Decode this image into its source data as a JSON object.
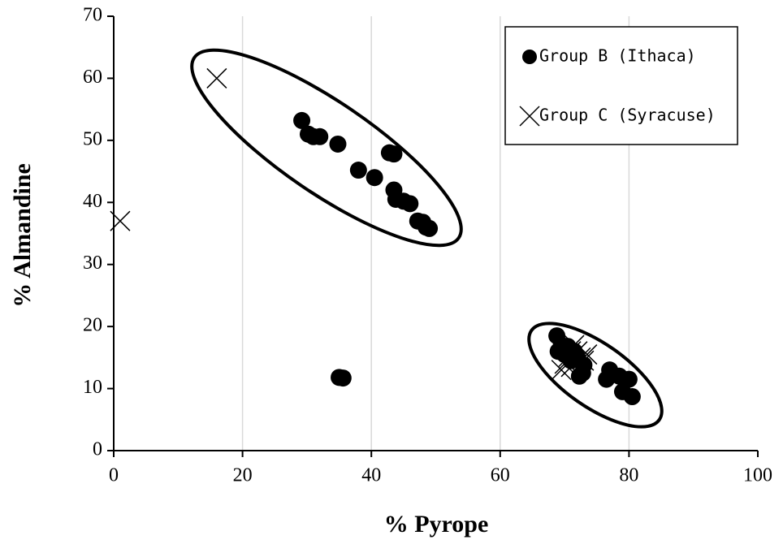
{
  "chart_data": {
    "type": "scatter",
    "x_label": "% Pyrope",
    "y_label": "% Almandine",
    "xlim": [
      0,
      100
    ],
    "xticks": [
      0,
      20,
      40,
      60,
      80,
      100
    ],
    "ylim": [
      0,
      70
    ],
    "yticks": [
      0,
      10,
      20,
      30,
      40,
      50,
      60,
      70
    ],
    "grid": "x",
    "legend": "upper right",
    "series": [
      {
        "name": "Group B (Ithaca)",
        "color": "#000000",
        "marker": "circle",
        "x": [
          29.2,
          30.2,
          31,
          32,
          34.8,
          38,
          40.5,
          42.8,
          43.5,
          43.5,
          43.8,
          45,
          46,
          47.2,
          48,
          48.5,
          49,
          35,
          35.6,
          68.8,
          69,
          69.5,
          70,
          70.5,
          71,
          71.5,
          72,
          72.3,
          72.8,
          73,
          76.5,
          77,
          78.5,
          79,
          80,
          80.5
        ],
        "values": [
          53.2,
          51,
          50.6,
          50.6,
          49.4,
          45.2,
          44,
          48,
          47.8,
          42,
          40.5,
          40.2,
          39.8,
          37,
          36.8,
          36,
          35.8,
          11.8,
          11.7,
          18.5,
          16,
          17,
          15.5,
          16.8,
          14.5,
          16,
          15,
          12,
          12.5,
          13.8,
          11.5,
          13,
          12,
          9.5,
          11.5,
          8.7
        ]
      },
      {
        "name": "Group C (Syracuse)",
        "color": "#000000",
        "marker": "x",
        "x": [
          16,
          1,
          69.5,
          70,
          70.5,
          71,
          71.5,
          72,
          72.5,
          73,
          73.5,
          71
        ],
        "values": [
          60,
          37,
          13,
          14,
          15,
          16,
          17,
          16,
          15,
          14.5,
          15.5,
          13.5
        ]
      }
    ]
  }
}
